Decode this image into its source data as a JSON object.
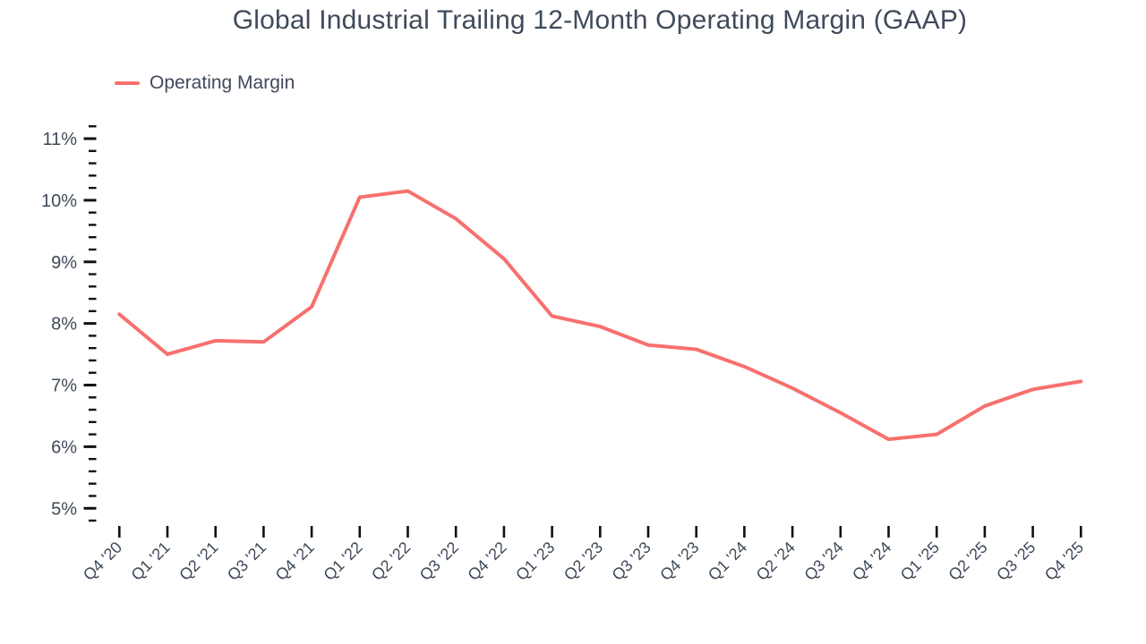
{
  "page": {
    "background": "#ffffff"
  },
  "chart_data": {
    "type": "line",
    "title": "Global Industrial Trailing 12-Month Operating Margin (GAAP)",
    "xlabel": "",
    "ylabel": "",
    "categories": [
      "Q4 '20",
      "Q1 '21",
      "Q2 '21",
      "Q3 '21",
      "Q4 '21",
      "Q1 '22",
      "Q2 '22",
      "Q3 '22",
      "Q4 '22",
      "Q1 '23",
      "Q2 '23",
      "Q3 '23",
      "Q4 '23",
      "Q1 '24",
      "Q2 '24",
      "Q3 '24",
      "Q4 '24",
      "Q1 '25",
      "Q2 '25",
      "Q3 '25",
      "Q4 '25"
    ],
    "series": [
      {
        "name": "Operating Margin",
        "values": [
          8.15,
          7.5,
          7.72,
          7.7,
          8.27,
          10.05,
          10.15,
          9.7,
          9.05,
          8.12,
          7.95,
          7.65,
          7.58,
          7.3,
          6.95,
          6.55,
          6.12,
          6.2,
          6.66,
          6.93,
          7.06
        ]
      }
    ],
    "ylim": [
      4.7,
      11.3
    ],
    "yticks_major": [
      5,
      6,
      7,
      8,
      9,
      10,
      11
    ],
    "ytick_suffix": "%",
    "ytick_minor_step": 0.2,
    "ytick_minor_min": 4.8,
    "ytick_minor_max": 11.2,
    "grid": false,
    "legend_position": "top-left",
    "colors": {
      "line": "#f7706e",
      "text": "#3f4a5a",
      "tick": "#111111"
    }
  }
}
